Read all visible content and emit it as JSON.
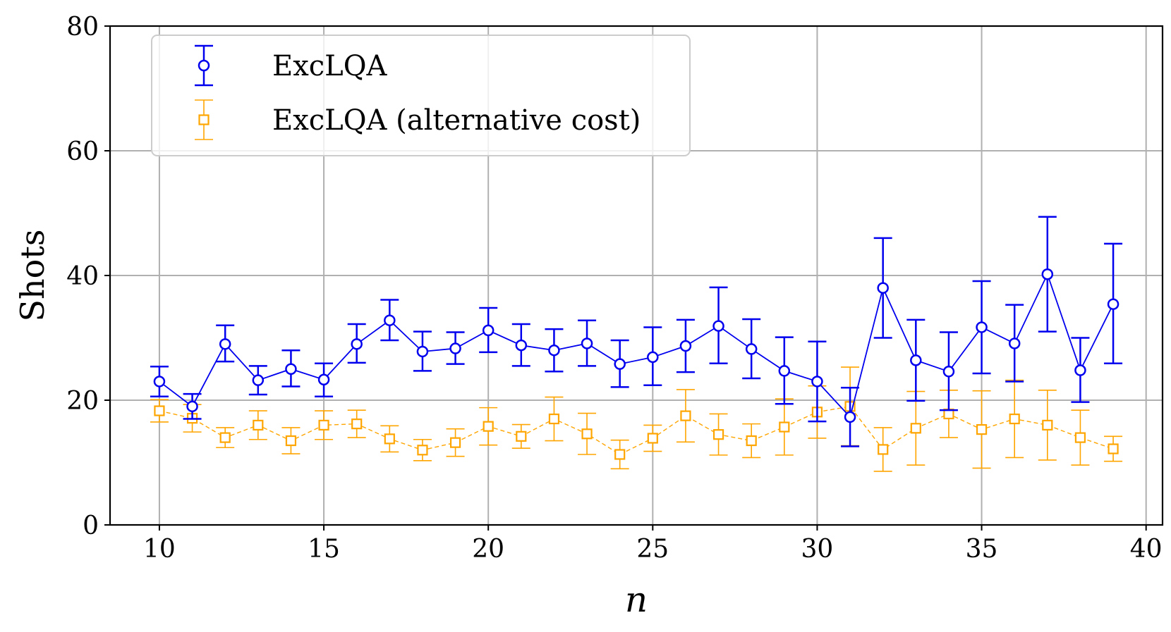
{
  "chart_data": {
    "type": "line",
    "title": "",
    "xlabel": "n",
    "ylabel": "Shots",
    "xlim": [
      8.5,
      40.5
    ],
    "ylim": [
      0,
      80
    ],
    "xticks": [
      10,
      15,
      20,
      25,
      30,
      35,
      40
    ],
    "yticks": [
      0,
      20,
      40,
      60,
      80
    ],
    "grid": true,
    "legend_position": "top-left",
    "x": [
      10,
      11,
      12,
      13,
      14,
      15,
      16,
      17,
      18,
      19,
      20,
      21,
      22,
      23,
      24,
      25,
      26,
      27,
      28,
      29,
      30,
      31,
      32,
      33,
      34,
      35,
      36,
      37,
      38,
      39
    ],
    "series": [
      {
        "name": "ExcLQA",
        "color": "#0000ee",
        "marker": "circle",
        "linestyle": "solid",
        "values": [
          23.0,
          19.0,
          29.0,
          23.2,
          25.0,
          23.3,
          29.0,
          32.8,
          27.8,
          28.3,
          31.2,
          28.8,
          28.0,
          29.1,
          25.8,
          26.9,
          28.7,
          31.9,
          28.2,
          24.7,
          23.0,
          17.3,
          38.0,
          26.4,
          24.6,
          31.7,
          29.1,
          40.2,
          24.8,
          35.4
        ],
        "err_low": [
          20.6,
          17.0,
          26.2,
          20.9,
          22.2,
          20.6,
          26.0,
          29.6,
          24.7,
          25.8,
          27.7,
          25.5,
          24.6,
          25.5,
          22.1,
          22.4,
          24.5,
          25.9,
          23.5,
          19.4,
          16.6,
          12.6,
          30.0,
          19.9,
          18.4,
          24.3,
          23.0,
          31.0,
          19.7,
          25.9
        ],
        "err_high": [
          25.4,
          21.0,
          32.0,
          25.5,
          28.0,
          25.9,
          32.2,
          36.1,
          31.0,
          30.9,
          34.8,
          32.2,
          31.4,
          32.8,
          29.6,
          31.7,
          32.9,
          38.1,
          33.0,
          30.1,
          29.4,
          22.0,
          46.0,
          32.9,
          30.9,
          39.1,
          35.3,
          49.4,
          30.0,
          45.1
        ]
      },
      {
        "name": "ExcLQA (alternative cost)",
        "color": "#ffa500",
        "marker": "square",
        "linestyle": "dashed",
        "values": [
          18.3,
          17.1,
          14.0,
          16.0,
          13.5,
          16.0,
          16.2,
          13.8,
          12.0,
          13.2,
          15.8,
          14.2,
          17.0,
          14.6,
          11.3,
          13.9,
          17.5,
          14.5,
          13.5,
          15.7,
          18.1,
          19.0,
          12.1,
          15.5,
          17.8,
          15.3,
          17.0,
          16.0,
          14.0,
          12.2
        ],
        "err_low": [
          16.5,
          14.9,
          12.4,
          13.7,
          11.4,
          13.7,
          14.0,
          11.7,
          10.3,
          11.0,
          12.8,
          12.3,
          13.5,
          11.3,
          9.0,
          11.8,
          13.3,
          11.2,
          10.8,
          11.2,
          13.9,
          12.7,
          8.6,
          9.6,
          14.0,
          9.1,
          10.8,
          10.4,
          9.6,
          10.2
        ],
        "err_high": [
          20.1,
          19.3,
          15.6,
          18.3,
          15.6,
          18.3,
          18.4,
          15.9,
          13.7,
          15.4,
          18.8,
          16.1,
          20.5,
          17.9,
          13.6,
          16.0,
          21.7,
          17.8,
          16.2,
          20.2,
          22.3,
          25.3,
          15.6,
          21.4,
          21.6,
          21.5,
          23.2,
          21.6,
          18.4,
          14.2
        ]
      }
    ]
  }
}
